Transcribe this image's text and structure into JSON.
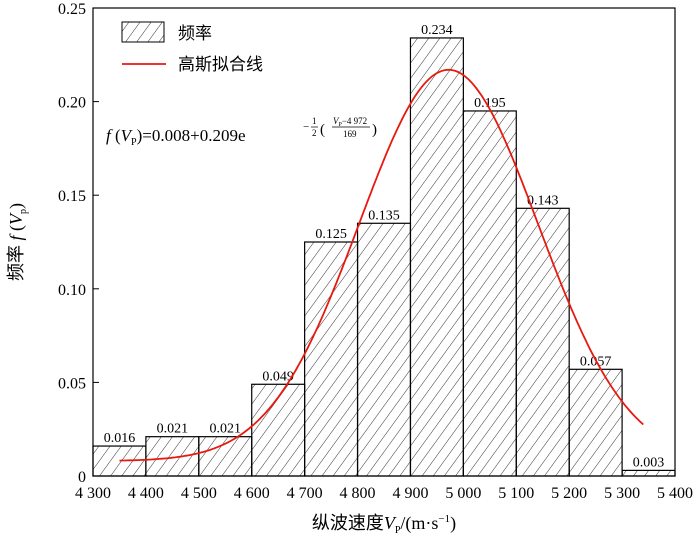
{
  "chart_data": {
    "type": "bar",
    "bins": [
      [
        4300,
        4400
      ],
      [
        4400,
        4500
      ],
      [
        4500,
        4600
      ],
      [
        4600,
        4700
      ],
      [
        4700,
        4800
      ],
      [
        4800,
        4900
      ],
      [
        4900,
        5000
      ],
      [
        5000,
        5100
      ],
      [
        5100,
        5200
      ],
      [
        5200,
        5300
      ],
      [
        5300,
        5400
      ]
    ],
    "values": [
      0.016,
      0.021,
      0.021,
      0.049,
      0.125,
      0.135,
      0.234,
      0.195,
      0.143,
      0.057,
      0.003
    ],
    "bar_labels": [
      "0.016",
      "0.021",
      "0.021",
      "0.049",
      "0.125",
      "0.135",
      "0.234",
      "0.195",
      "0.143",
      "0.057",
      "0.003"
    ],
    "xlim": [
      4300,
      5400
    ],
    "ylim": [
      0,
      0.25
    ],
    "x_ticks": [
      4300,
      4400,
      4500,
      4600,
      4700,
      4800,
      4900,
      5000,
      5100,
      5200,
      5300,
      5400
    ],
    "x_tick_labels": [
      "4 300",
      "4 400",
      "4 500",
      "4 600",
      "4 700",
      "4 800",
      "4 900",
      "5 000",
      "5 100",
      "5 200",
      "5 300",
      "5 400"
    ],
    "y_ticks": [
      0,
      0.05,
      0.1,
      0.15,
      0.2,
      0.25
    ],
    "y_tick_labels": [
      "0",
      "0.05",
      "0.10",
      "0.15",
      "0.20",
      "0.25"
    ],
    "xlabel": {
      "main": "纵波速度",
      "var": "V",
      "sub": "P",
      "unit_pre": "/(m·s",
      "unit_sup": "−1",
      "unit_post": ")"
    },
    "ylabel": {
      "main": "频率 ",
      "f": "f",
      "open": " (",
      "var": "V",
      "sub": "p",
      "close": ")"
    },
    "legend": {
      "position": "top-left",
      "items": [
        "频率",
        "高斯拟合线"
      ]
    },
    "fit_curve": {
      "name": "高斯拟合线",
      "y0": 0.008,
      "A": 0.209,
      "xc": 4972,
      "w": 169,
      "x_range": [
        4350,
        5340
      ],
      "color": "#e8190f"
    },
    "equation": {
      "f": "f",
      "open": " (",
      "var": "V",
      "sub": "P",
      "mid": ")=0.008+0.209e",
      "exp_sign": "−",
      "half_num": "1",
      "half_den": "2",
      "frac_num_var": "V",
      "frac_num_sub": "P",
      "frac_num_rest": "−4 972",
      "frac_den": "169"
    },
    "grid": false
  }
}
